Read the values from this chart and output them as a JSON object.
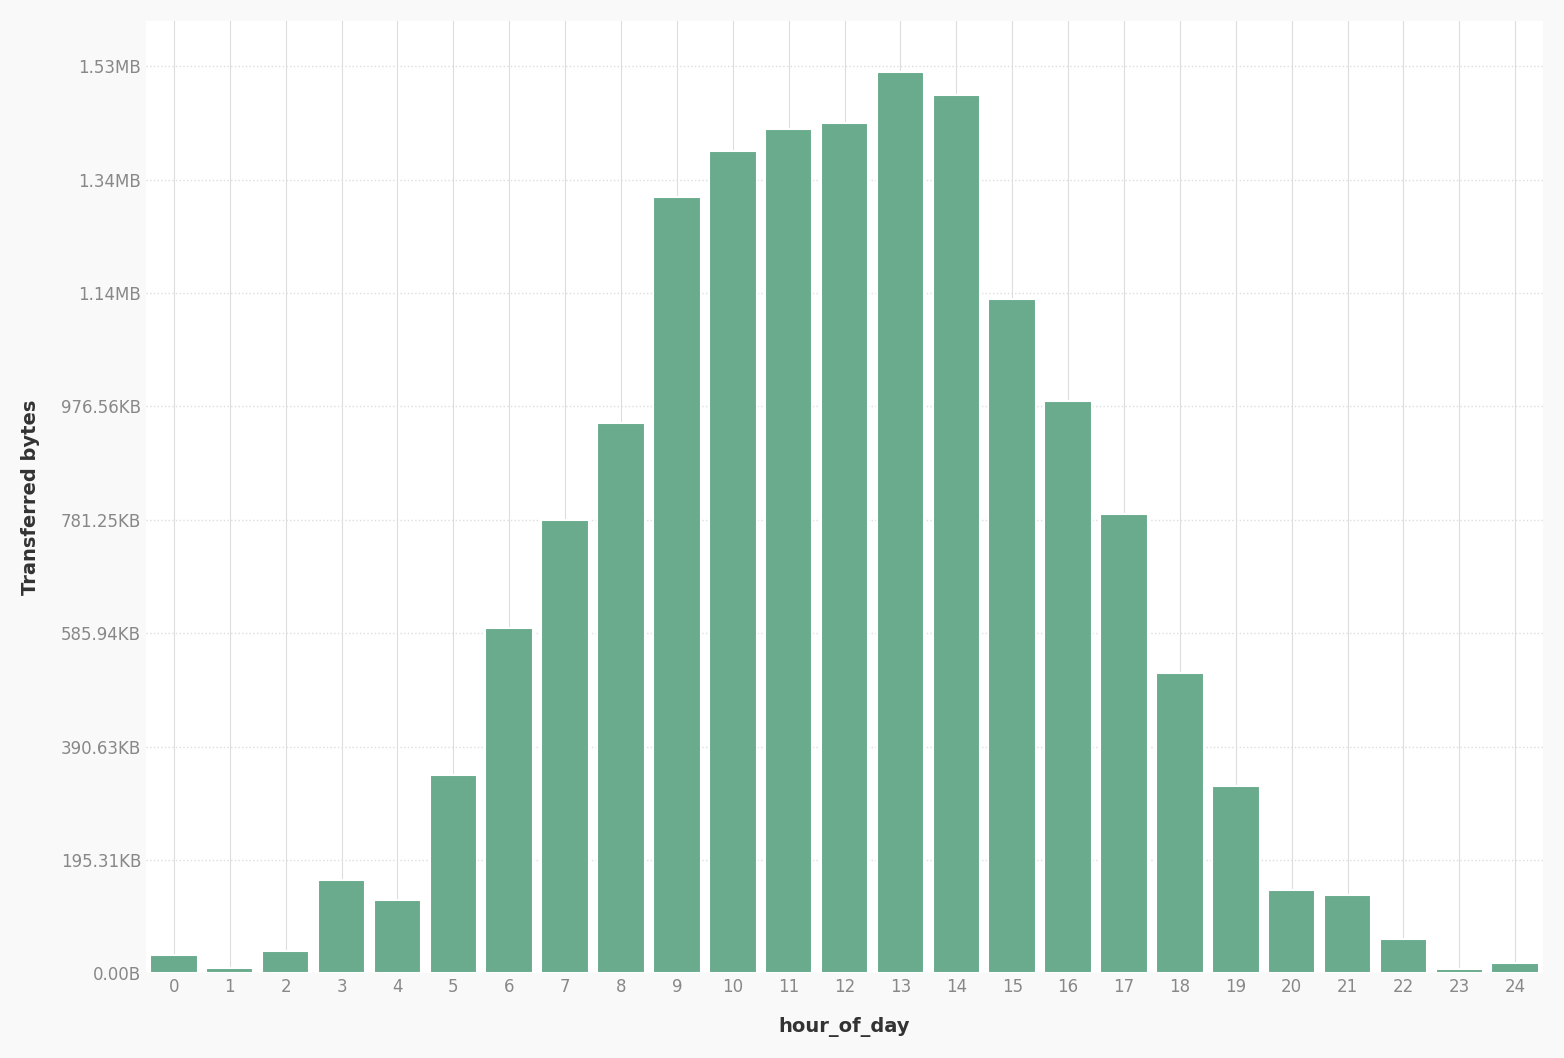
{
  "hours": [
    0,
    1,
    2,
    3,
    4,
    5,
    6,
    7,
    8,
    9,
    10,
    11,
    12,
    13,
    14,
    15,
    16,
    17,
    18,
    19,
    20,
    21,
    22,
    23,
    24
  ],
  "values": [
    32000,
    10000,
    40000,
    165000,
    130000,
    350000,
    610000,
    800000,
    970000,
    1370000,
    1450000,
    1490000,
    1500000,
    1590000,
    1550000,
    1190000,
    1010000,
    810000,
    530000,
    330000,
    148000,
    138000,
    60000,
    8000,
    18000
  ],
  "bar_color": "#6aab8e",
  "bar_edge_color": "#ffffff",
  "bar_width": 0.85,
  "xlabel": "hour_of_day",
  "ylabel": "Transferred bytes",
  "xlabel_fontsize": 14,
  "ylabel_fontsize": 14,
  "tick_label_fontsize": 12,
  "background_color": "#f9f9f9",
  "plot_bg_color": "#ffffff",
  "grid_color": "#dddddd",
  "yticks_bytes": [
    0,
    200000,
    400000,
    600000,
    800000,
    1000000,
    1200000,
    1400000,
    1600000
  ],
  "ytick_labels": [
    "0.00B",
    "195.31KB",
    "390.63KB",
    "585.94KB",
    "781.25KB",
    "976.56KB",
    "1.14MB",
    "1.34MB",
    "1.53MB"
  ],
  "ylim": [
    0,
    1680000
  ],
  "xlim": [
    -0.5,
    24.5
  ]
}
